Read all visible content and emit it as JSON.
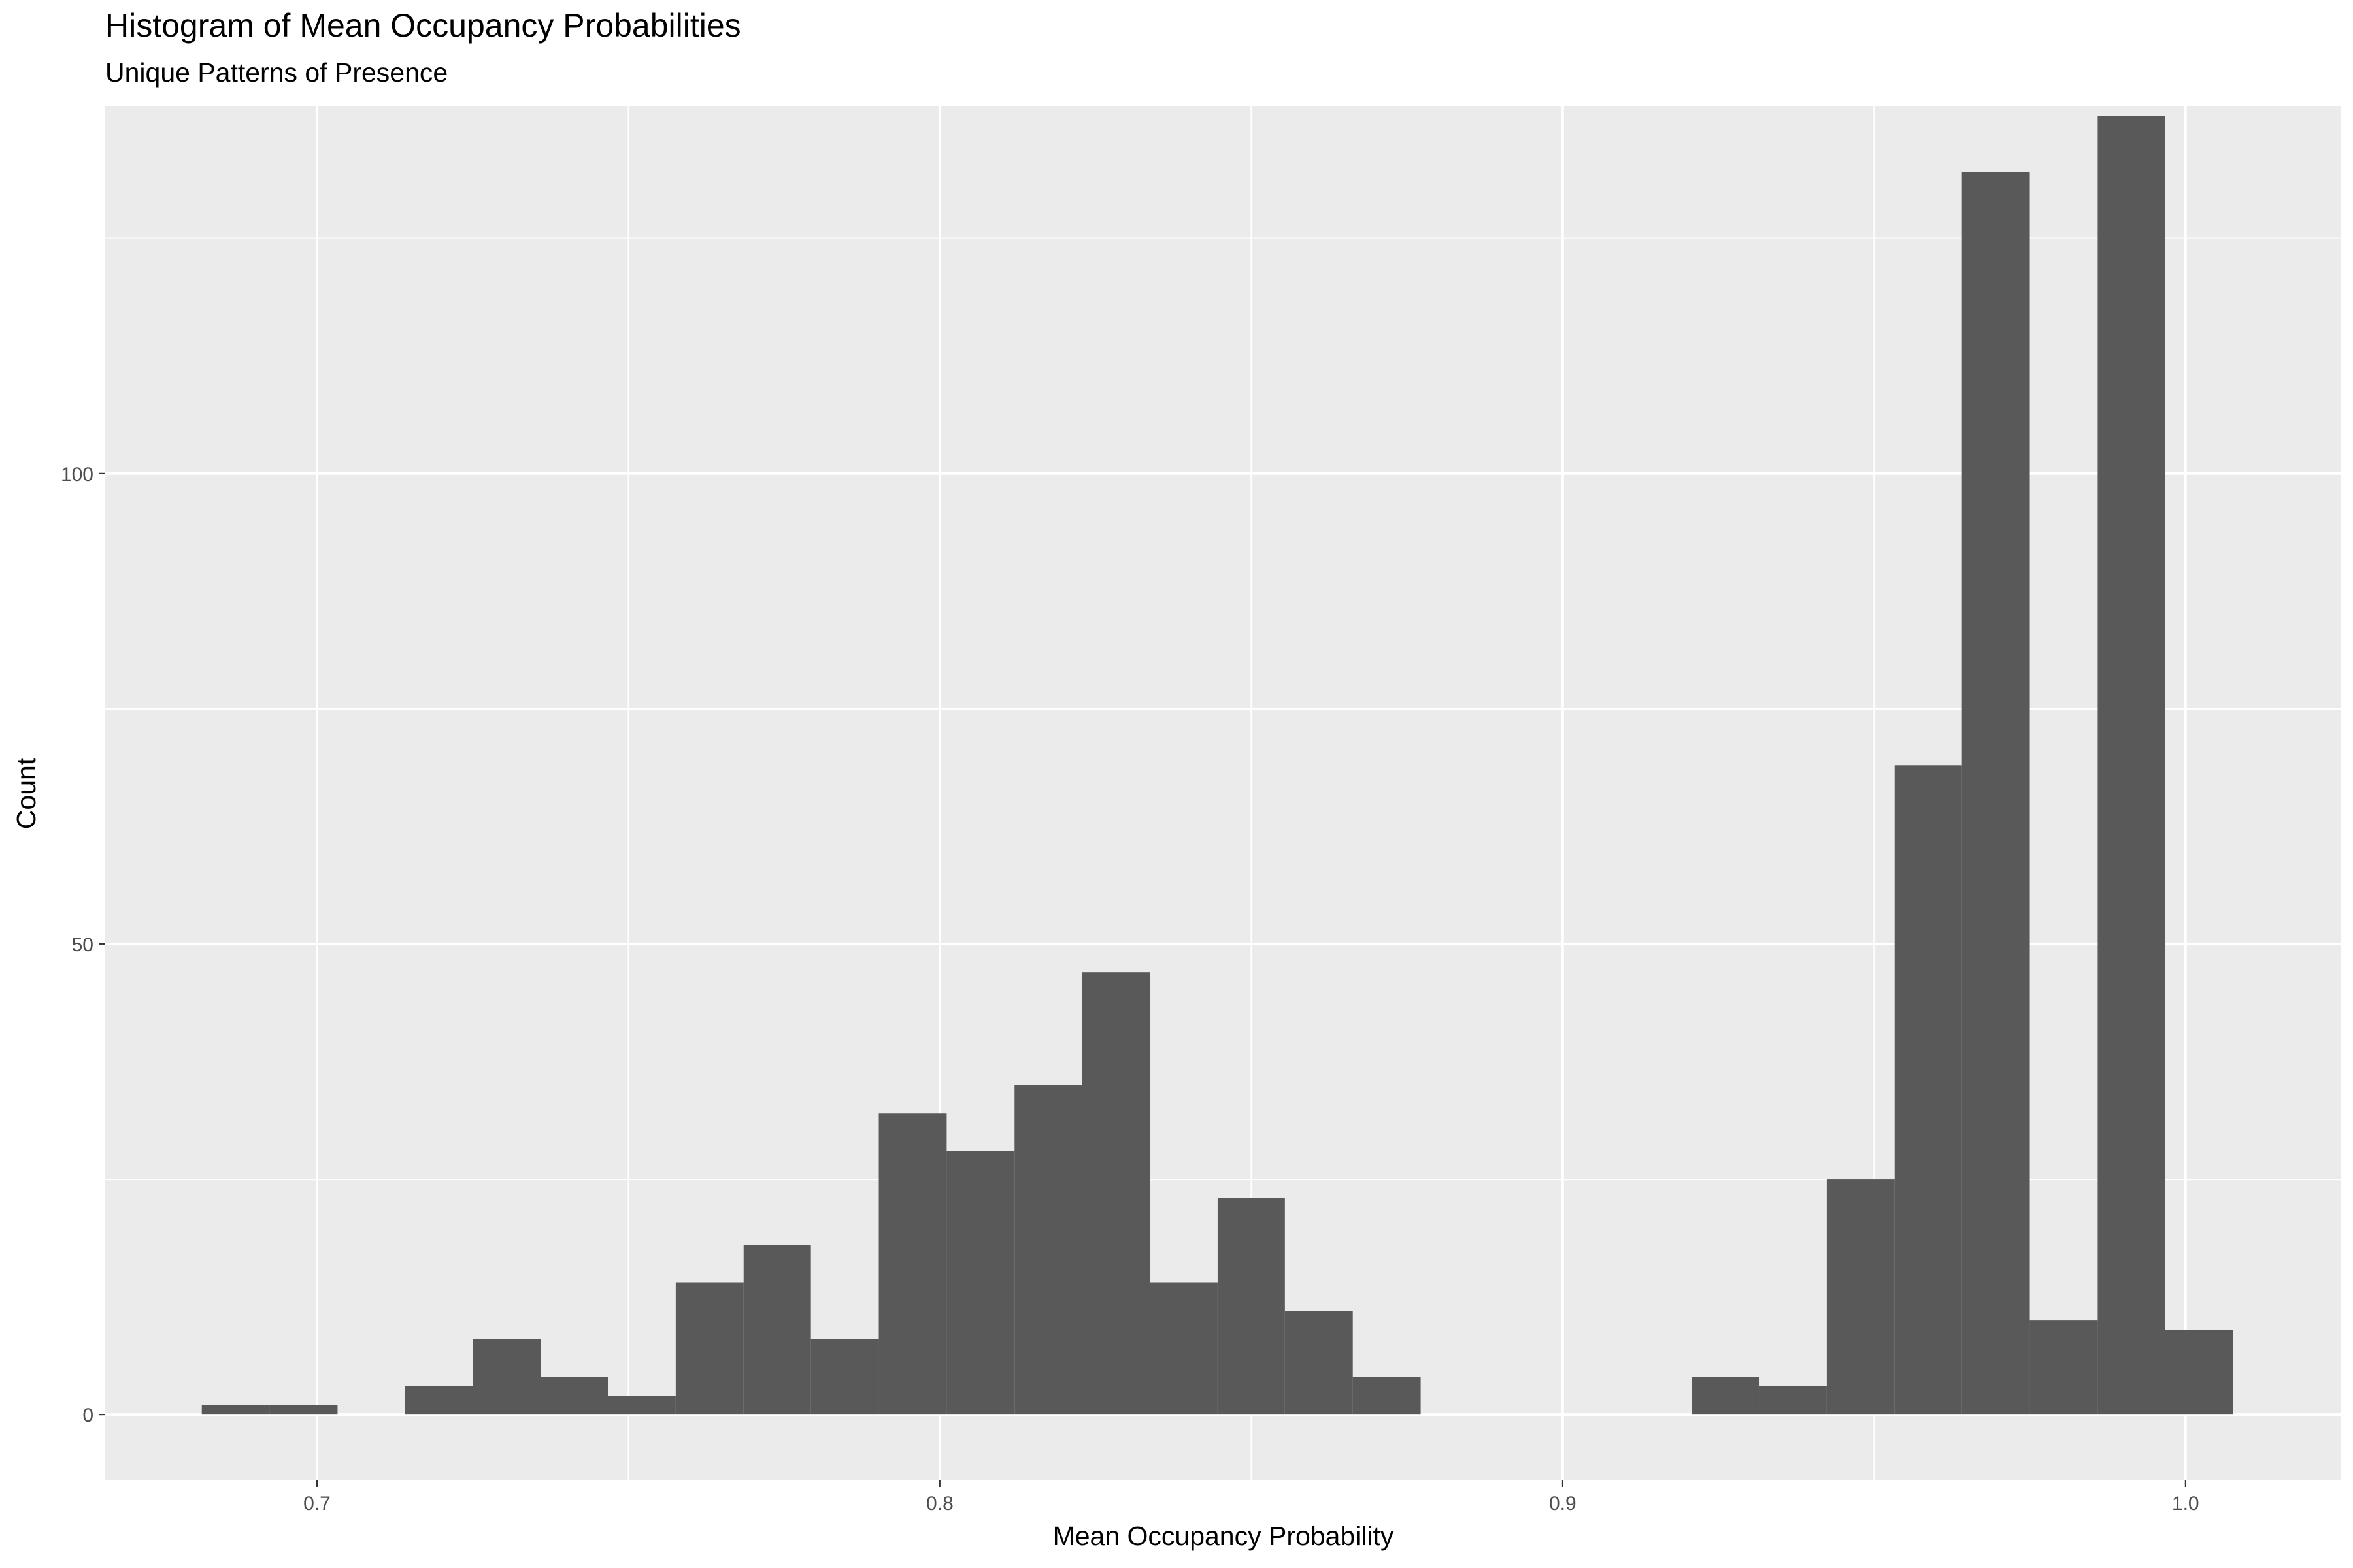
{
  "chart_data": {
    "type": "bar",
    "title": "Histogram of Mean Occupancy Probabilities",
    "subtitle": "Unique Patterns of Presence",
    "xlabel": "Mean Occupancy Probability",
    "ylabel": "Count",
    "xlim": [
      0.666,
      1.025
    ],
    "ylim": [
      -7,
      139
    ],
    "xticks": [
      0.7,
      0.8,
      0.9,
      1.0
    ],
    "xtick_labels": [
      "0.7",
      "0.8",
      "0.9",
      "1.0"
    ],
    "yticks": [
      0,
      50,
      100
    ],
    "ytick_labels": [
      "0",
      "50",
      "100"
    ],
    "grid": true,
    "bin_width": 0.01087,
    "bins": [
      {
        "x0": 0.6815,
        "x1": 0.6924,
        "count": 1
      },
      {
        "x0": 0.6924,
        "x1": 0.7033,
        "count": 1
      },
      {
        "x0": 0.7033,
        "x1": 0.7141,
        "count": 0
      },
      {
        "x0": 0.7141,
        "x1": 0.725,
        "count": 3
      },
      {
        "x0": 0.725,
        "x1": 0.7359,
        "count": 8
      },
      {
        "x0": 0.7359,
        "x1": 0.7467,
        "count": 4
      },
      {
        "x0": 0.7467,
        "x1": 0.7576,
        "count": 2
      },
      {
        "x0": 0.7576,
        "x1": 0.7685,
        "count": 14
      },
      {
        "x0": 0.7685,
        "x1": 0.7793,
        "count": 18
      },
      {
        "x0": 0.7793,
        "x1": 0.7902,
        "count": 8
      },
      {
        "x0": 0.7902,
        "x1": 0.8011,
        "count": 32
      },
      {
        "x0": 0.8011,
        "x1": 0.812,
        "count": 28
      },
      {
        "x0": 0.812,
        "x1": 0.8228,
        "count": 35
      },
      {
        "x0": 0.8228,
        "x1": 0.8337,
        "count": 47
      },
      {
        "x0": 0.8337,
        "x1": 0.8446,
        "count": 14
      },
      {
        "x0": 0.8446,
        "x1": 0.8554,
        "count": 23
      },
      {
        "x0": 0.8554,
        "x1": 0.8663,
        "count": 11
      },
      {
        "x0": 0.8663,
        "x1": 0.8772,
        "count": 4
      },
      {
        "x0": 0.8772,
        "x1": 0.888,
        "count": 0
      },
      {
        "x0": 0.888,
        "x1": 0.8989,
        "count": 0
      },
      {
        "x0": 0.8989,
        "x1": 0.9098,
        "count": 0
      },
      {
        "x0": 0.9098,
        "x1": 0.9207,
        "count": 0
      },
      {
        "x0": 0.9207,
        "x1": 0.9315,
        "count": 4
      },
      {
        "x0": 0.9315,
        "x1": 0.9424,
        "count": 3
      },
      {
        "x0": 0.9424,
        "x1": 0.9533,
        "count": 25
      },
      {
        "x0": 0.9533,
        "x1": 0.9641,
        "count": 69
      },
      {
        "x0": 0.9641,
        "x1": 0.975,
        "count": 132
      },
      {
        "x0": 0.975,
        "x1": 0.9859,
        "count": 10
      },
      {
        "x0": 0.9859,
        "x1": 0.9967,
        "count": 138
      },
      {
        "x0": 0.9967,
        "x1": 1.0076,
        "count": 9
      }
    ],
    "colors": {
      "bar": "#595959",
      "panel": "#ebebeb",
      "grid": "#ffffff",
      "tick": "#333333",
      "tick_label": "#4d4d4d"
    }
  }
}
